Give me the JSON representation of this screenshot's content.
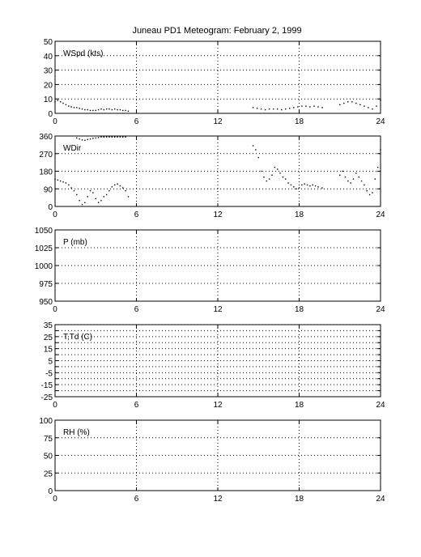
{
  "title": "Juneau PD1 Meteogram:  February  2, 1999",
  "chart_data": [
    {
      "type": "scatter",
      "label": "WSpd (kts)",
      "xlim": [
        0,
        24
      ],
      "ylim": [
        0,
        50
      ],
      "xticks": [
        0,
        6,
        12,
        18,
        24
      ],
      "yticks": [
        0,
        10,
        20,
        30,
        40,
        50
      ],
      "grid": true,
      "series": [
        {
          "segments": [
            {
              "x": [
                0,
                0.2,
                0.4,
                0.6,
                0.8,
                1.0,
                1.2,
                1.4,
                1.6,
                1.8,
                2.0,
                2.2,
                2.4,
                2.6,
                2.8,
                3.0,
                3.2,
                3.4,
                3.6,
                3.8,
                4.0,
                4.2,
                4.4,
                4.6,
                4.8,
                5.0,
                5.2,
                5.4
              ],
              "y": [
                8,
                9,
                8,
                7,
                6,
                5,
                4.5,
                4,
                4,
                3.5,
                3,
                2.5,
                2.5,
                2,
                2,
                2,
                2.5,
                3,
                2.5,
                3,
                3,
                2.5,
                3,
                2.5,
                2.5,
                2,
                2,
                1.5
              ]
            },
            {
              "x": [
                14.6,
                14.9,
                15.2,
                15.5,
                15.8,
                16.1,
                16.4,
                16.7,
                17.0,
                17.3,
                17.6,
                17.9,
                18.2,
                18.5,
                18.8,
                19.1,
                19.4,
                19.7
              ],
              "y": [
                4,
                3.5,
                3,
                2.5,
                3,
                3,
                3,
                2.5,
                3,
                3.5,
                4,
                4.5,
                5,
                5,
                4.5,
                5,
                4.5,
                4
              ]
            },
            {
              "x": [
                21.0,
                21.3,
                21.6,
                21.9,
                22.2,
                22.5,
                22.8,
                23.1,
                23.4,
                23.7,
                24.0
              ],
              "y": [
                6,
                7,
                8,
                8,
                7,
                6,
                5,
                4,
                3,
                5,
                9
              ]
            }
          ]
        }
      ]
    },
    {
      "type": "scatter",
      "label": "WDir",
      "xlim": [
        0,
        24
      ],
      "ylim": [
        0,
        360
      ],
      "xticks": [
        0,
        6,
        12,
        18,
        24
      ],
      "yticks": [
        0,
        90,
        180,
        270,
        360
      ],
      "grid": true,
      "series": [
        {
          "segments": [
            {
              "x": [
                0,
                0.2,
                0.4,
                0.6,
                0.8,
                1.0,
                1.2,
                1.4,
                1.6,
                1.8,
                2.0,
                2.2,
                2.4,
                2.6,
                2.8,
                3.0,
                3.2,
                3.4,
                3.6,
                3.8,
                4.0,
                4.2,
                4.4,
                4.6,
                4.8,
                5.0,
                5.2,
                5.4
              ],
              "y": [
                140,
                135,
                130,
                125,
                120,
                110,
                95,
                80,
                60,
                30,
                10,
                20,
                50,
                80,
                70,
                40,
                20,
                30,
                50,
                60,
                80,
                100,
                110,
                115,
                105,
                95,
                80,
                50
              ]
            },
            {
              "x": [
                1.6,
                1.8,
                2.0,
                2.2,
                2.4,
                2.6,
                2.8,
                3.0,
                3.2,
                3.4,
                3.6,
                3.8,
                4.0,
                4.2,
                4.4,
                4.6,
                4.8,
                5.0,
                5.2
              ],
              "y": [
                350,
                345,
                340,
                338,
                342,
                345,
                348,
                350,
                352,
                355,
                355,
                355,
                355,
                355,
                355,
                355,
                355,
                355,
                355
              ]
            },
            {
              "x": [
                14.6,
                14.8,
                15.0,
                15.2,
                15.4,
                15.6,
                15.8,
                16.0,
                16.2,
                16.4,
                16.6,
                16.8,
                17.0,
                17.2,
                17.4,
                17.6,
                17.8,
                18.0,
                18.2,
                18.4,
                18.6,
                18.8,
                19.0,
                19.2,
                19.4,
                19.7
              ],
              "y": [
                310,
                290,
                250,
                180,
                150,
                130,
                140,
                160,
                200,
                190,
                170,
                150,
                140,
                120,
                110,
                100,
                90,
                95,
                110,
                115,
                110,
                105,
                110,
                105,
                100,
                95
              ]
            },
            {
              "x": [
                21.0,
                21.2,
                21.4,
                21.6,
                21.8,
                22.0,
                22.2,
                22.4,
                22.6,
                22.8,
                23.0,
                23.2,
                23.4,
                23.6,
                23.8,
                24.0
              ],
              "y": [
                160,
                180,
                150,
                130,
                120,
                140,
                170,
                150,
                130,
                110,
                80,
                60,
                70,
                140,
                200,
                290
              ]
            }
          ]
        }
      ]
    },
    {
      "type": "scatter",
      "label": "P (mb)",
      "xlim": [
        0,
        24
      ],
      "ylim": [
        950,
        1050
      ],
      "xticks": [
        0,
        6,
        12,
        18,
        24
      ],
      "yticks": [
        950,
        975,
        1000,
        1025,
        1050
      ],
      "grid": true,
      "series": []
    },
    {
      "type": "scatter",
      "label": "T,Td (C)",
      "xlim": [
        0,
        24
      ],
      "ylim": [
        -25,
        35
      ],
      "xticks": [
        0,
        6,
        12,
        18,
        24
      ],
      "yticks": [
        -25,
        -15,
        -5,
        5,
        15,
        25,
        35
      ],
      "yticks_labeled": [
        -25,
        -20,
        -15,
        -10,
        -5,
        0,
        5,
        10,
        15,
        20,
        25,
        30,
        35
      ],
      "ytick_labels_shown": [
        -25,
        -15,
        -5,
        5,
        15,
        25,
        35
      ],
      "grid": true,
      "series": []
    },
    {
      "type": "scatter",
      "label": "RH (%)",
      "xlim": [
        0,
        24
      ],
      "ylim": [
        0,
        100
      ],
      "xticks": [
        0,
        6,
        12,
        18,
        24
      ],
      "yticks": [
        0,
        25,
        50,
        75,
        100
      ],
      "grid": true,
      "series": []
    }
  ]
}
